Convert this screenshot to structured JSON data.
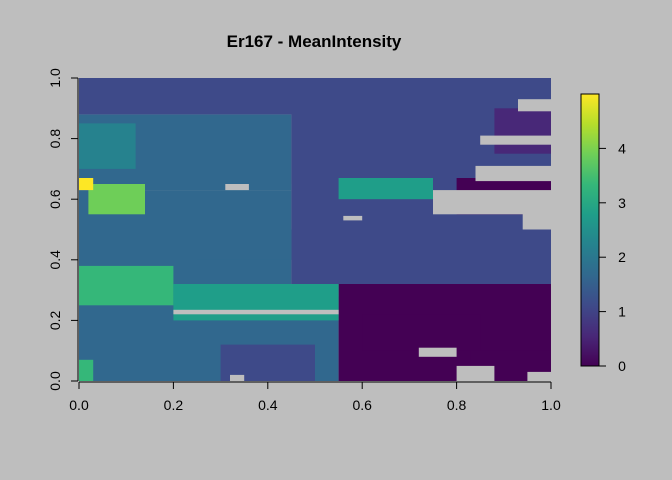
{
  "chart_data": {
    "type": "heatmap",
    "title": "Er167 - MeanIntensity",
    "xlabel": "",
    "ylabel": "",
    "xlim": [
      0,
      1
    ],
    "ylim": [
      0,
      1
    ],
    "x_ticks": [
      "0.0",
      "0.2",
      "0.4",
      "0.6",
      "0.8",
      "1.0"
    ],
    "y_ticks": [
      "0.0",
      "0.2",
      "0.4",
      "0.6",
      "0.8",
      "1.0"
    ],
    "colorbar": {
      "range": [
        0,
        5
      ],
      "ticks": [
        "0",
        "1",
        "2",
        "3",
        "4"
      ],
      "palette": "viridis",
      "colors": [
        "#440154",
        "#482878",
        "#3e4a89",
        "#31688e",
        "#26828e",
        "#1f9e89",
        "#35b779",
        "#6ece58",
        "#b5de2b",
        "#fde725"
      ]
    },
    "background_color": "#bebebe",
    "regions": [
      {
        "x": 0.0,
        "y": 0.0,
        "w": 0.55,
        "h": 0.28,
        "value": 1.4
      },
      {
        "x": 0.55,
        "y": 0.0,
        "w": 0.45,
        "h": 0.32,
        "value": 0.2
      },
      {
        "x": 0.0,
        "y": 0.28,
        "w": 0.45,
        "h": 0.35,
        "value": 1.6
      },
      {
        "x": 0.45,
        "y": 0.32,
        "w": 0.55,
        "h": 0.33,
        "value": 0.9
      },
      {
        "x": 0.0,
        "y": 0.63,
        "w": 0.45,
        "h": 0.25,
        "value": 1.8
      },
      {
        "x": 0.45,
        "y": 0.65,
        "w": 0.55,
        "h": 0.25,
        "value": 1.2
      },
      {
        "x": 0.0,
        "y": 0.88,
        "w": 1.0,
        "h": 0.12,
        "value": 1.0
      },
      {
        "x": 0.0,
        "y": 0.25,
        "w": 0.2,
        "h": 0.13,
        "value": 3.2
      },
      {
        "x": 0.2,
        "y": 0.2,
        "w": 0.35,
        "h": 0.12,
        "value": 3.0
      },
      {
        "x": 0.02,
        "y": 0.55,
        "w": 0.12,
        "h": 0.1,
        "value": 3.9
      },
      {
        "x": 0.0,
        "y": 0.63,
        "w": 0.03,
        "h": 0.04,
        "value": 5.0
      },
      {
        "x": 0.55,
        "y": 0.6,
        "w": 0.2,
        "h": 0.07,
        "value": 2.6
      },
      {
        "x": 0.0,
        "y": 0.7,
        "w": 0.12,
        "h": 0.15,
        "value": 2.2
      },
      {
        "x": 0.6,
        "y": 0.1,
        "w": 0.25,
        "h": 0.12,
        "value": 0.1
      },
      {
        "x": 0.83,
        "y": 0.0,
        "w": 0.17,
        "h": 0.1,
        "value": 0.0
      },
      {
        "x": 0.8,
        "y": 0.55,
        "w": 0.2,
        "h": 0.12,
        "value": 0.1
      },
      {
        "x": 0.88,
        "y": 0.75,
        "w": 0.12,
        "h": 0.15,
        "value": 0.3
      },
      {
        "x": 0.25,
        "y": 0.4,
        "w": 0.2,
        "h": 0.1,
        "value": 1.9
      },
      {
        "x": 0.3,
        "y": 0.0,
        "w": 0.2,
        "h": 0.12,
        "value": 1.2
      },
      {
        "x": 0.0,
        "y": 0.0,
        "w": 0.03,
        "h": 0.07,
        "value": 3.5
      }
    ],
    "gaps": [
      {
        "x": 0.75,
        "y": 0.55,
        "w": 0.25,
        "h": 0.08
      },
      {
        "x": 0.84,
        "y": 0.66,
        "w": 0.16,
        "h": 0.05
      },
      {
        "x": 0.85,
        "y": 0.78,
        "w": 0.15,
        "h": 0.03
      },
      {
        "x": 0.94,
        "y": 0.5,
        "w": 0.06,
        "h": 0.08
      },
      {
        "x": 0.2,
        "y": 0.22,
        "w": 0.35,
        "h": 0.015
      },
      {
        "x": 0.31,
        "y": 0.63,
        "w": 0.05,
        "h": 0.02
      },
      {
        "x": 0.56,
        "y": 0.53,
        "w": 0.04,
        "h": 0.015
      },
      {
        "x": 0.8,
        "y": 0.0,
        "w": 0.08,
        "h": 0.05
      },
      {
        "x": 0.72,
        "y": 0.08,
        "w": 0.08,
        "h": 0.03
      },
      {
        "x": 0.95,
        "y": 0.0,
        "w": 0.05,
        "h": 0.03
      },
      {
        "x": 0.93,
        "y": 0.89,
        "w": 0.07,
        "h": 0.04
      },
      {
        "x": 0.32,
        "y": 0.0,
        "w": 0.03,
        "h": 0.02
      }
    ]
  }
}
